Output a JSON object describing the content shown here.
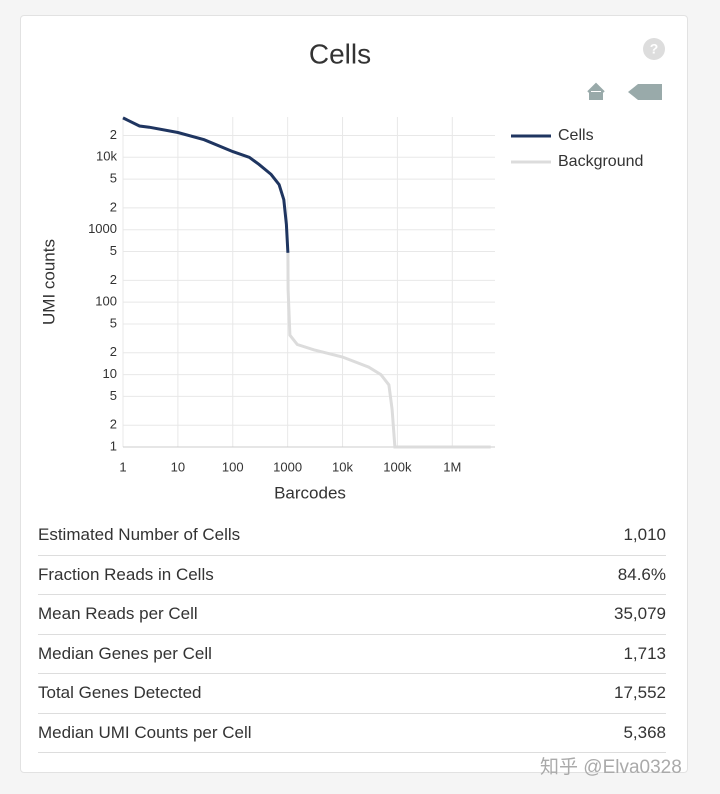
{
  "help": "?",
  "chart_data": {
    "type": "line",
    "title": "Cells",
    "xlabel": "Barcodes",
    "ylabel": "UMI counts",
    "xscale": "log",
    "yscale": "log",
    "grid": true,
    "legend": "right",
    "xlim": [
      1,
      6000000
    ],
    "ylim": [
      1,
      36000
    ],
    "xticks": [
      1,
      10,
      100,
      1000,
      {
        "value": 10000,
        "label": "10k"
      },
      {
        "value": 100000,
        "label": "100k"
      },
      {
        "value": 1000000,
        "label": "1M"
      }
    ],
    "yticks": [
      1,
      2,
      5,
      10,
      {
        "value": 20,
        "label": "2"
      },
      {
        "value": 50,
        "label": "5"
      },
      100,
      {
        "value": 200,
        "label": "2"
      },
      {
        "value": 500,
        "label": "5"
      },
      1000,
      {
        "value": 2000,
        "label": "2"
      },
      {
        "value": 5000,
        "label": "5"
      },
      {
        "value": 10000,
        "label": "10k"
      },
      {
        "value": 20000,
        "label": "2"
      }
    ],
    "series": [
      {
        "name": "Cells",
        "color": "#1f3560",
        "x": [
          1,
          2,
          3,
          10,
          30,
          100,
          200,
          300,
          500,
          700,
          850,
          950,
          1010
        ],
        "values": [
          35000,
          27000,
          26000,
          22000,
          17500,
          12000,
          10000,
          8000,
          5800,
          4200,
          2600,
          1180,
          480
        ]
      },
      {
        "name": "Background",
        "color": "#dcdcdc",
        "x": [
          1011,
          1020,
          1100,
          1500,
          3000,
          10000,
          30000,
          50000,
          70000,
          80000,
          90000,
          100000,
          5000000
        ],
        "values": [
          480,
          150,
          35,
          26,
          22,
          17.5,
          12.7,
          10,
          7.2,
          3.3,
          1,
          1,
          1
        ]
      }
    ]
  },
  "table": {
    "rows": [
      [
        "Estimated Number of Cells",
        "1,010"
      ],
      [
        "Fraction Reads in Cells",
        "84.6%"
      ],
      [
        "Mean Reads per Cell",
        "35,079"
      ],
      [
        "Median Genes per Cell",
        "1,713"
      ],
      [
        "Total Genes Detected",
        "17,552"
      ],
      [
        "Median UMI Counts per Cell",
        "5,368"
      ]
    ]
  },
  "watermark": "知乎 @Elva0328"
}
